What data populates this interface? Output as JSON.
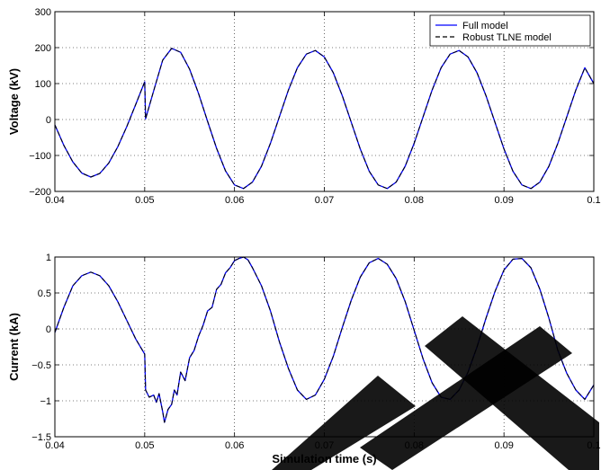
{
  "chart_data": [
    {
      "type": "line",
      "xlabel": "",
      "ylabel": "Voltage (kV)",
      "xlim": [
        0.04,
        0.1
      ],
      "ylim": [
        -200,
        300
      ],
      "xticks": [
        0.04,
        0.05,
        0.06,
        0.07,
        0.08,
        0.09,
        0.1
      ],
      "xtick_labels": [
        "0.04",
        "0.05",
        "0.06",
        "0.07",
        "0.08",
        "0.09",
        "0.1"
      ],
      "yticks": [
        -200,
        -100,
        0,
        100,
        200,
        300
      ],
      "ytick_labels": [
        "−200",
        "−100",
        "0",
        "100",
        "200",
        "300"
      ],
      "grid": true,
      "legend_position": "top-right",
      "series": [
        {
          "name": "Full model",
          "color": "#0000ff",
          "dash": "solid",
          "x": [
            0.04,
            0.041,
            0.042,
            0.043,
            0.044,
            0.045,
            0.046,
            0.047,
            0.048,
            0.049,
            0.05,
            0.0501,
            0.051,
            0.052,
            0.053,
            0.054,
            0.055,
            0.056,
            0.057,
            0.058,
            0.059,
            0.06,
            0.061,
            0.062,
            0.063,
            0.064,
            0.065,
            0.066,
            0.067,
            0.068,
            0.069,
            0.07,
            0.071,
            0.072,
            0.073,
            0.074,
            0.075,
            0.076,
            0.077,
            0.078,
            0.079,
            0.08,
            0.081,
            0.082,
            0.083,
            0.084,
            0.085,
            0.086,
            0.087,
            0.088,
            0.089,
            0.09,
            0.091,
            0.092,
            0.093,
            0.094,
            0.095,
            0.096,
            0.097,
            0.098,
            0.099,
            0.1
          ],
          "y": [
            -15,
            -72,
            -118,
            -149,
            -160,
            -150,
            -121,
            -76,
            -20,
            42,
            105,
            2,
            80,
            165,
            198,
            187,
            140,
            72,
            -5,
            -80,
            -143,
            -182,
            -192,
            -174,
            -130,
            -66,
            8,
            82,
            144,
            182,
            192,
            174,
            130,
            66,
            -8,
            -82,
            -144,
            -182,
            -192,
            -174,
            -130,
            -66,
            8,
            82,
            144,
            182,
            192,
            174,
            130,
            66,
            -8,
            -82,
            -144,
            -182,
            -192,
            -174,
            -130,
            -66,
            8,
            82,
            144,
            100
          ]
        },
        {
          "name": "Robust TLNE model",
          "color": "#000000",
          "dash": "dashed",
          "x": [
            0.04,
            0.041,
            0.042,
            0.043,
            0.044,
            0.045,
            0.046,
            0.047,
            0.048,
            0.049,
            0.05,
            0.0501,
            0.051,
            0.052,
            0.053,
            0.054,
            0.055,
            0.056,
            0.057,
            0.058,
            0.059,
            0.06,
            0.061,
            0.062,
            0.063,
            0.064,
            0.065,
            0.066,
            0.067,
            0.068,
            0.069,
            0.07,
            0.071,
            0.072,
            0.073,
            0.074,
            0.075,
            0.076,
            0.077,
            0.078,
            0.079,
            0.08,
            0.081,
            0.082,
            0.083,
            0.084,
            0.085,
            0.086,
            0.087,
            0.088,
            0.089,
            0.09,
            0.091,
            0.092,
            0.093,
            0.094,
            0.095,
            0.096,
            0.097,
            0.098,
            0.099,
            0.1
          ],
          "y": [
            -15,
            -72,
            -118,
            -149,
            -160,
            -150,
            -121,
            -76,
            -20,
            42,
            105,
            2,
            80,
            165,
            198,
            187,
            140,
            72,
            -5,
            -80,
            -143,
            -182,
            -192,
            -174,
            -130,
            -66,
            8,
            82,
            144,
            182,
            192,
            174,
            130,
            66,
            -8,
            -82,
            -144,
            -182,
            -192,
            -174,
            -130,
            -66,
            8,
            82,
            144,
            182,
            192,
            174,
            130,
            66,
            -8,
            -82,
            -144,
            -182,
            -192,
            -174,
            -130,
            -66,
            8,
            82,
            144,
            100
          ]
        }
      ]
    },
    {
      "type": "line",
      "xlabel": "Simulation time (s)",
      "ylabel": "Current (kA)",
      "xlim": [
        0.04,
        0.1
      ],
      "ylim": [
        -1.5,
        1
      ],
      "xticks": [
        0.04,
        0.05,
        0.06,
        0.07,
        0.08,
        0.09,
        0.1
      ],
      "xtick_labels": [
        "0.04",
        "0.05",
        "0.06",
        "0.07",
        "0.08",
        "0.09",
        "0.1"
      ],
      "yticks": [
        -1.5,
        -1,
        -0.5,
        0,
        0.5,
        1
      ],
      "ytick_labels": [
        "−1.5",
        "−1",
        "−0.5",
        "0",
        "0.5",
        "1"
      ],
      "grid": true,
      "series": [
        {
          "name": "Full model",
          "color": "#0000ff",
          "dash": "solid",
          "x": [
            0.04,
            0.041,
            0.042,
            0.043,
            0.044,
            0.045,
            0.046,
            0.047,
            0.048,
            0.049,
            0.05,
            0.0501,
            0.0505,
            0.051,
            0.0513,
            0.0516,
            0.052,
            0.0522,
            0.0526,
            0.053,
            0.0533,
            0.0536,
            0.054,
            0.0545,
            0.055,
            0.0555,
            0.056,
            0.0565,
            0.057,
            0.0575,
            0.058,
            0.0585,
            0.059,
            0.0595,
            0.06,
            0.0605,
            0.061,
            0.0615,
            0.062,
            0.063,
            0.064,
            0.065,
            0.066,
            0.067,
            0.068,
            0.069,
            0.07,
            0.071,
            0.072,
            0.073,
            0.074,
            0.075,
            0.076,
            0.077,
            0.078,
            0.079,
            0.08,
            0.081,
            0.082,
            0.083,
            0.084,
            0.085,
            0.086,
            0.087,
            0.088,
            0.089,
            0.09,
            0.091,
            0.092,
            0.093,
            0.094,
            0.095,
            0.096,
            0.097,
            0.098,
            0.099,
            0.1
          ],
          "y": [
            -0.05,
            0.3,
            0.6,
            0.74,
            0.79,
            0.74,
            0.6,
            0.38,
            0.12,
            -0.14,
            -0.35,
            -0.85,
            -0.95,
            -0.92,
            -1.02,
            -0.9,
            -1.15,
            -1.3,
            -1.12,
            -1.05,
            -0.85,
            -0.92,
            -0.6,
            -0.72,
            -0.4,
            -0.3,
            -0.1,
            0.05,
            0.25,
            0.3,
            0.55,
            0.62,
            0.78,
            0.85,
            0.95,
            0.98,
            1.0,
            0.96,
            0.85,
            0.6,
            0.25,
            -0.18,
            -0.55,
            -0.85,
            -0.98,
            -0.92,
            -0.7,
            -0.38,
            0.02,
            0.4,
            0.72,
            0.92,
            0.98,
            0.9,
            0.7,
            0.38,
            -0.02,
            -0.42,
            -0.75,
            -0.95,
            -0.98,
            -0.85,
            -0.6,
            -0.25,
            0.15,
            0.52,
            0.82,
            0.97,
            0.98,
            0.85,
            0.55,
            0.15,
            -0.3,
            -0.62,
            -0.85,
            -0.98,
            -0.78
          ]
        },
        {
          "name": "Robust TLNE model",
          "color": "#000000",
          "dash": "dashed",
          "x": [
            0.04,
            0.041,
            0.042,
            0.043,
            0.044,
            0.045,
            0.046,
            0.047,
            0.048,
            0.049,
            0.05,
            0.0501,
            0.0505,
            0.051,
            0.0513,
            0.0516,
            0.052,
            0.0522,
            0.0526,
            0.053,
            0.0533,
            0.0536,
            0.054,
            0.0545,
            0.055,
            0.0555,
            0.056,
            0.0565,
            0.057,
            0.0575,
            0.058,
            0.0585,
            0.059,
            0.0595,
            0.06,
            0.0605,
            0.061,
            0.0615,
            0.062,
            0.063,
            0.064,
            0.065,
            0.066,
            0.067,
            0.068,
            0.069,
            0.07,
            0.071,
            0.072,
            0.073,
            0.074,
            0.075,
            0.076,
            0.077,
            0.078,
            0.079,
            0.08,
            0.081,
            0.082,
            0.083,
            0.084,
            0.085,
            0.086,
            0.087,
            0.088,
            0.089,
            0.09,
            0.091,
            0.092,
            0.093,
            0.094,
            0.095,
            0.096,
            0.097,
            0.098,
            0.099,
            0.1
          ],
          "y": [
            -0.05,
            0.3,
            0.6,
            0.74,
            0.79,
            0.74,
            0.6,
            0.38,
            0.12,
            -0.14,
            -0.35,
            -0.85,
            -0.95,
            -0.92,
            -1.02,
            -0.9,
            -1.15,
            -1.3,
            -1.12,
            -1.05,
            -0.85,
            -0.92,
            -0.6,
            -0.72,
            -0.4,
            -0.3,
            -0.1,
            0.05,
            0.25,
            0.3,
            0.55,
            0.62,
            0.78,
            0.85,
            0.95,
            0.98,
            1.0,
            0.96,
            0.85,
            0.6,
            0.25,
            -0.18,
            -0.55,
            -0.85,
            -0.98,
            -0.92,
            -0.7,
            -0.38,
            0.02,
            0.4,
            0.72,
            0.92,
            0.98,
            0.9,
            0.7,
            0.38,
            -0.02,
            -0.42,
            -0.75,
            -0.95,
            -0.98,
            -0.85,
            -0.6,
            -0.25,
            0.15,
            0.52,
            0.82,
            0.97,
            0.98,
            0.85,
            0.55,
            0.15,
            -0.3,
            -0.62,
            -0.85,
            -0.98,
            -0.78
          ]
        }
      ]
    }
  ],
  "watermark": {
    "color": "#000000"
  }
}
